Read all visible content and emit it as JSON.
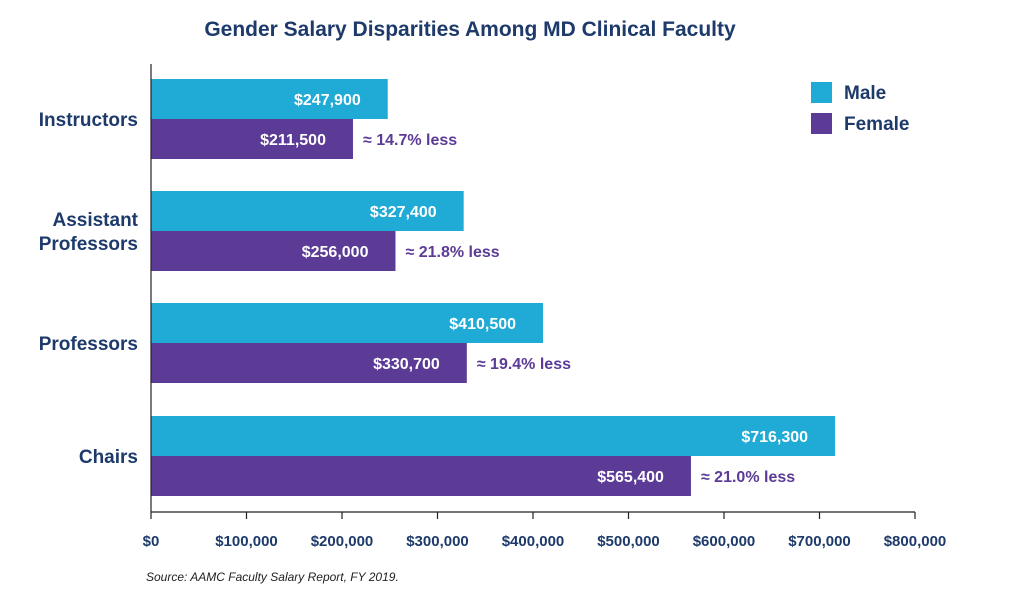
{
  "chart_data": {
    "type": "bar",
    "orientation": "horizontal",
    "title": "Gender Salary Disparities Among MD Clinical Faculty",
    "categories": [
      "Instructors",
      "Assistant Professors",
      "Professors",
      "Chairs"
    ],
    "category_lines": [
      [
        "Instructors"
      ],
      [
        "Assistant",
        "Professors"
      ],
      [
        "Professors"
      ],
      [
        "Chairs"
      ]
    ],
    "series": [
      {
        "name": "Male",
        "color": "#1fabd6",
        "values": [
          247900,
          327400,
          410500,
          716300
        ],
        "labels": [
          "$247,900",
          "$327,400",
          "$410,500",
          "$716,300"
        ]
      },
      {
        "name": "Female",
        "color": "#5b3b96",
        "values": [
          211500,
          256000,
          330700,
          565400
        ],
        "labels": [
          "$211,500",
          "$256,000",
          "$330,700",
          "$565,400"
        ]
      }
    ],
    "annotations": [
      "≈ 14.7% less",
      "≈ 21.8% less",
      "≈ 19.4% less",
      "≈ 21.0% less"
    ],
    "xlim": [
      0,
      800000
    ],
    "xticks": [
      0,
      100000,
      200000,
      300000,
      400000,
      500000,
      600000,
      700000,
      800000
    ],
    "xtick_labels": [
      "$0",
      "$100,000",
      "$200,000",
      "$300,000",
      "$400,000",
      "$500,000",
      "$600,000",
      "$700,000",
      "$800,000"
    ],
    "legend_position": "top-right",
    "grid": false
  },
  "source": "Source: AAMC Faculty Salary Report, FY 2019."
}
